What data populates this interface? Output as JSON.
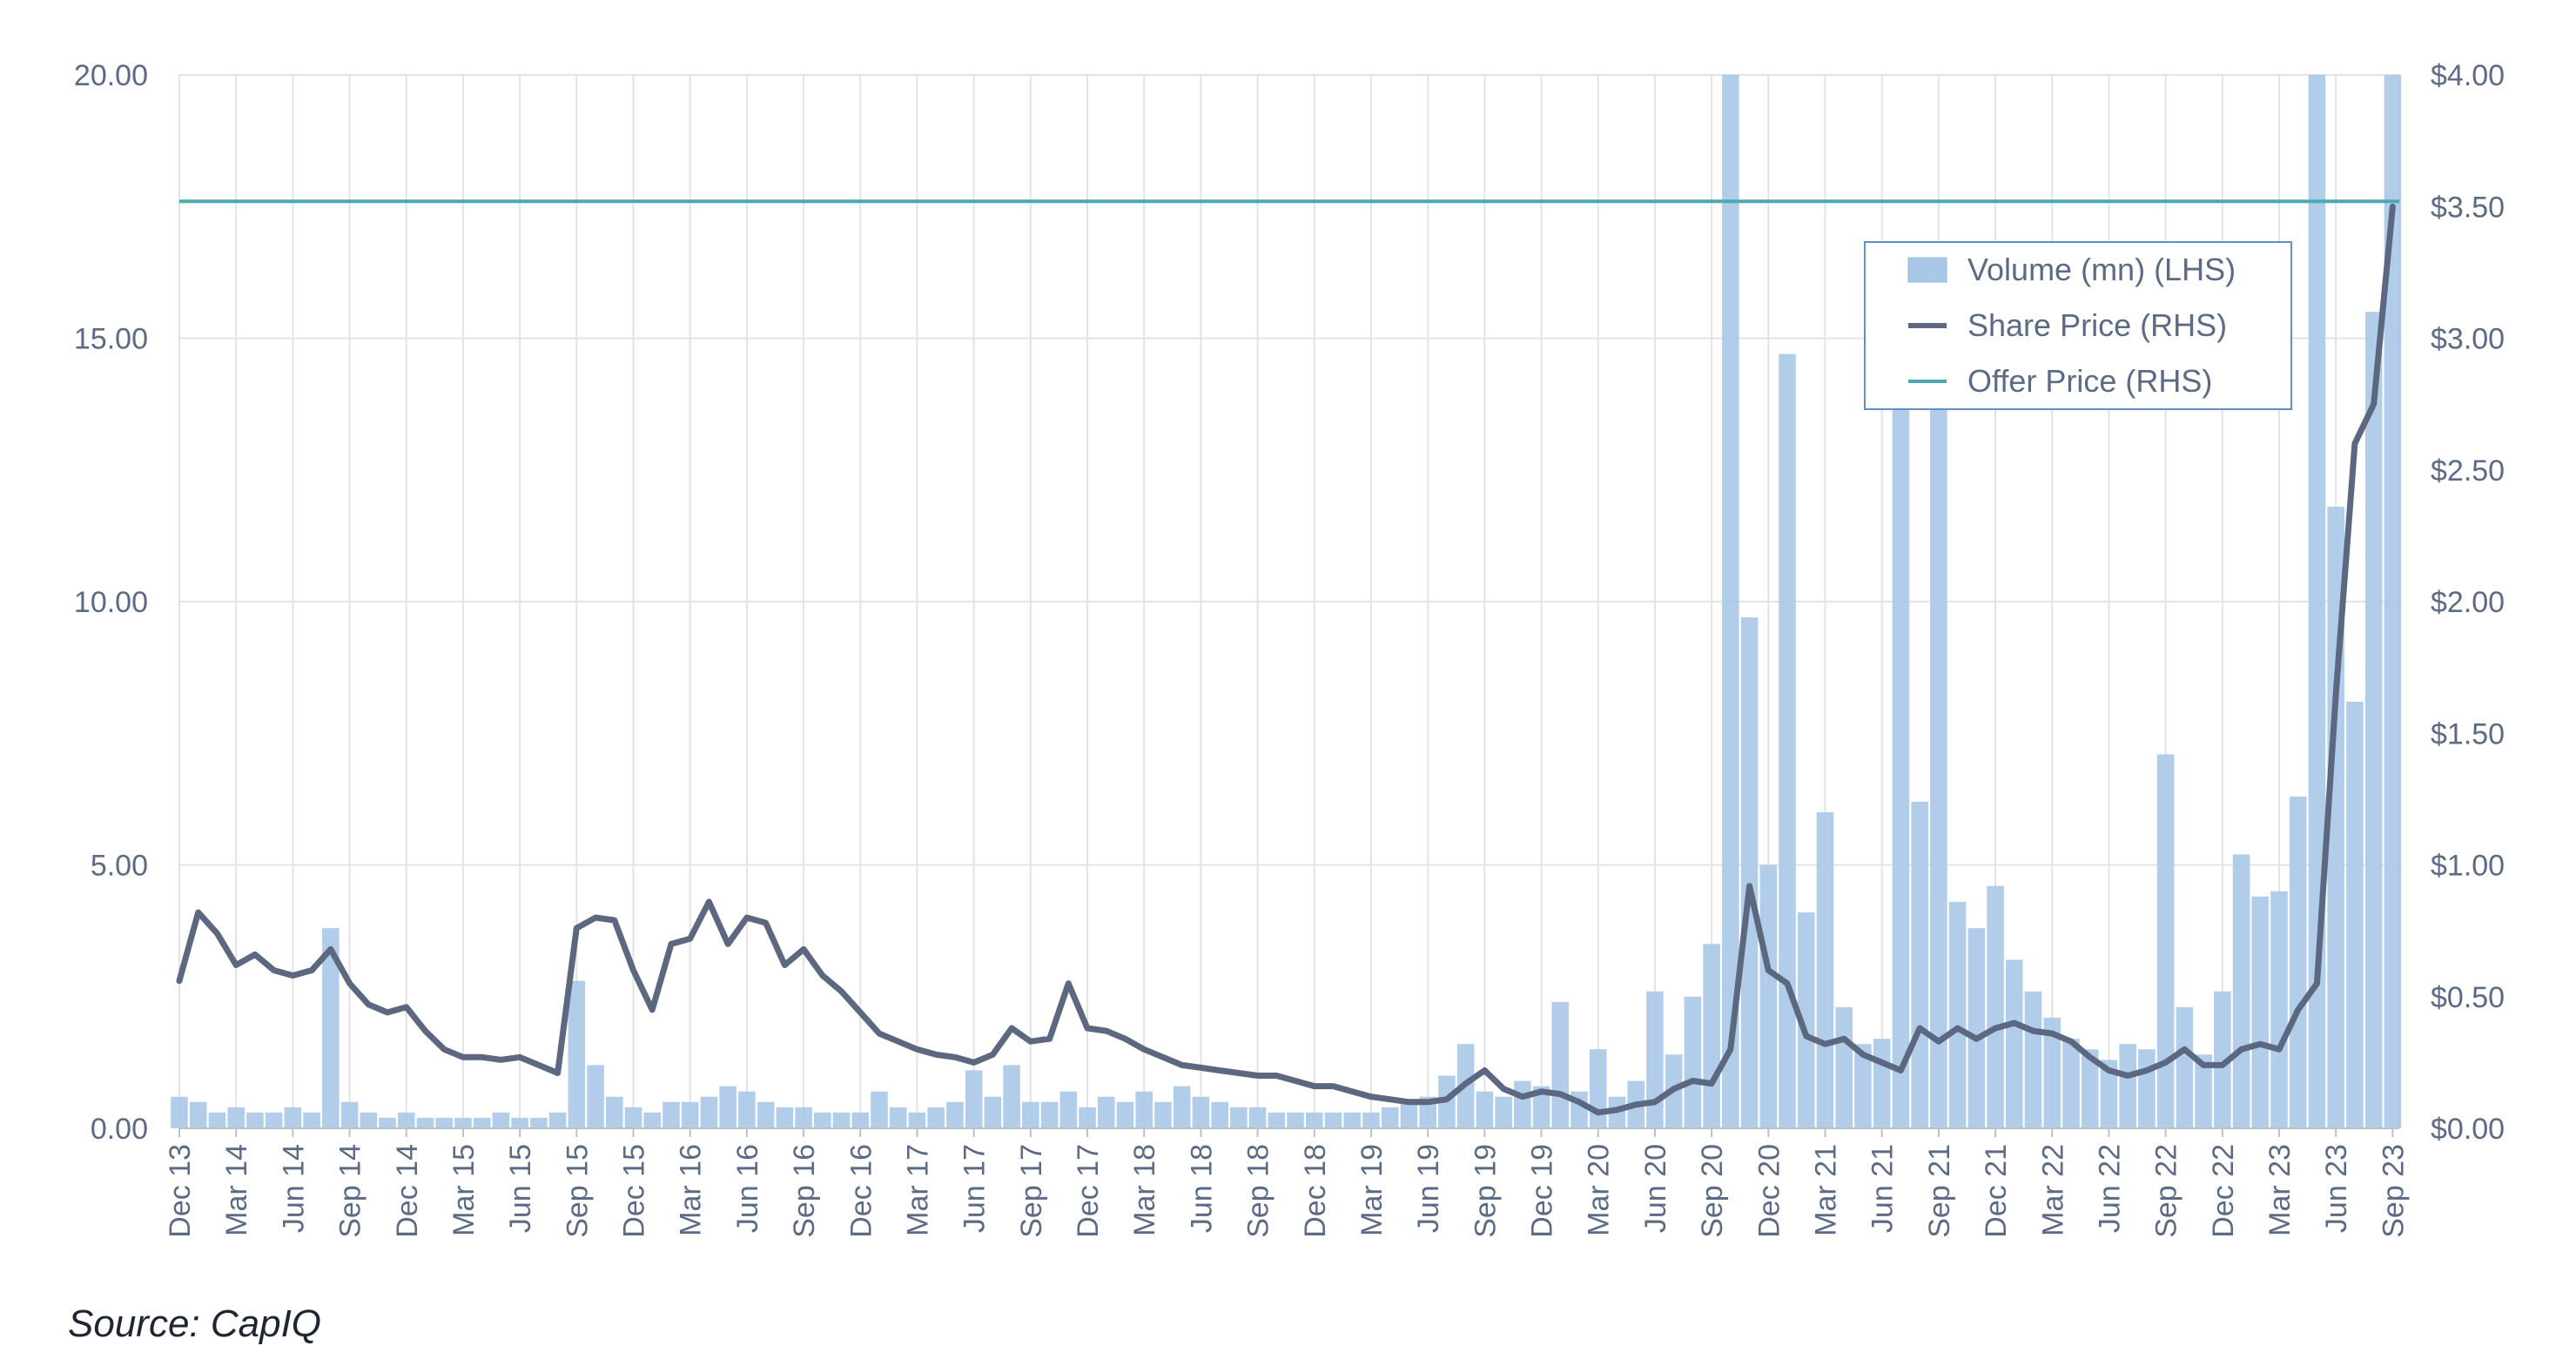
{
  "source_note": "Source: CapIQ",
  "chart_data": {
    "type": "line",
    "title": "",
    "xlabel": "",
    "ylabel_left": "",
    "ylabel_right": "",
    "grid": true,
    "legend_position": "top-right",
    "x_range": [
      "2013-12",
      "2023-09"
    ],
    "x_tick_labels": [
      "Dec 13",
      "Mar 14",
      "Jun 14",
      "Sep 14",
      "Dec 14",
      "Mar 15",
      "Jun 15",
      "Sep 15",
      "Dec 15",
      "Mar 16",
      "Jun 16",
      "Sep 16",
      "Dec 16",
      "Mar 17",
      "Jun 17",
      "Sep 17",
      "Dec 17",
      "Mar 18",
      "Jun 18",
      "Sep 18",
      "Dec 18",
      "Mar 19",
      "Jun 19",
      "Sep 19",
      "Dec 19",
      "Mar 20",
      "Jun 20",
      "Sep 20",
      "Dec 20",
      "Mar 21",
      "Jun 21",
      "Sep 21",
      "Dec 21",
      "Mar 22",
      "Jun 22",
      "Sep 22",
      "Dec 22",
      "Mar 23",
      "Jun 23",
      "Sep 23"
    ],
    "y_left": {
      "range": [
        0,
        20
      ],
      "tick_labels": [
        "0.00",
        "5.00",
        "10.00",
        "15.00",
        "20.00"
      ],
      "tick_values": [
        0,
        5,
        10,
        15,
        20
      ]
    },
    "y_right": {
      "range": [
        0,
        4
      ],
      "tick_labels": [
        "$0.00",
        "$0.50",
        "$1.00",
        "$1.50",
        "$2.00",
        "$2.50",
        "$3.00",
        "$3.50",
        "$4.00"
      ],
      "tick_values": [
        0,
        0.5,
        1,
        1.5,
        2,
        2.5,
        3,
        3.5,
        4
      ]
    },
    "legend": [
      {
        "label": "Volume (mn) (LHS)",
        "swatch": "bar",
        "color": "#a9c8e8"
      },
      {
        "label": "Share Price (RHS)",
        "swatch": "line",
        "color": "#5c6780"
      },
      {
        "label": "Offer Price (RHS)",
        "swatch": "line",
        "color": "#4aa9b3"
      }
    ],
    "series": [
      {
        "name": "Share Price (RHS)",
        "axis": "right",
        "color": "#5c6780",
        "points": [
          [
            "2013-12",
            0.56
          ],
          [
            "2014-01",
            0.82
          ],
          [
            "2014-02",
            0.74
          ],
          [
            "2014-03",
            0.62
          ],
          [
            "2014-04",
            0.66
          ],
          [
            "2014-05",
            0.6
          ],
          [
            "2014-06",
            0.58
          ],
          [
            "2014-07",
            0.6
          ],
          [
            "2014-08",
            0.68
          ],
          [
            "2014-09",
            0.55
          ],
          [
            "2014-10",
            0.47
          ],
          [
            "2014-11",
            0.44
          ],
          [
            "2014-12",
            0.46
          ],
          [
            "2015-01",
            0.37
          ],
          [
            "2015-02",
            0.3
          ],
          [
            "2015-03",
            0.27
          ],
          [
            "2015-04",
            0.27
          ],
          [
            "2015-05",
            0.26
          ],
          [
            "2015-06",
            0.27
          ],
          [
            "2015-07",
            0.24
          ],
          [
            "2015-08",
            0.21
          ],
          [
            "2015-09",
            0.76
          ],
          [
            "2015-10",
            0.8
          ],
          [
            "2015-11",
            0.79
          ],
          [
            "2015-12",
            0.6
          ],
          [
            "2016-01",
            0.45
          ],
          [
            "2016-02",
            0.7
          ],
          [
            "2016-03",
            0.72
          ],
          [
            "2016-04",
            0.86
          ],
          [
            "2016-05",
            0.7
          ],
          [
            "2016-06",
            0.8
          ],
          [
            "2016-07",
            0.78
          ],
          [
            "2016-08",
            0.62
          ],
          [
            "2016-09",
            0.68
          ],
          [
            "2016-10",
            0.58
          ],
          [
            "2016-11",
            0.52
          ],
          [
            "2016-12",
            0.44
          ],
          [
            "2017-01",
            0.36
          ],
          [
            "2017-02",
            0.33
          ],
          [
            "2017-03",
            0.3
          ],
          [
            "2017-04",
            0.28
          ],
          [
            "2017-05",
            0.27
          ],
          [
            "2017-06",
            0.25
          ],
          [
            "2017-07",
            0.28
          ],
          [
            "2017-08",
            0.38
          ],
          [
            "2017-09",
            0.33
          ],
          [
            "2017-10",
            0.34
          ],
          [
            "2017-11",
            0.55
          ],
          [
            "2017-12",
            0.38
          ],
          [
            "2018-01",
            0.37
          ],
          [
            "2018-02",
            0.34
          ],
          [
            "2018-03",
            0.3
          ],
          [
            "2018-04",
            0.27
          ],
          [
            "2018-05",
            0.24
          ],
          [
            "2018-06",
            0.23
          ],
          [
            "2018-07",
            0.22
          ],
          [
            "2018-08",
            0.21
          ],
          [
            "2018-09",
            0.2
          ],
          [
            "2018-10",
            0.2
          ],
          [
            "2018-11",
            0.18
          ],
          [
            "2018-12",
            0.16
          ],
          [
            "2019-01",
            0.16
          ],
          [
            "2019-02",
            0.14
          ],
          [
            "2019-03",
            0.12
          ],
          [
            "2019-04",
            0.11
          ],
          [
            "2019-05",
            0.1
          ],
          [
            "2019-06",
            0.1
          ],
          [
            "2019-07",
            0.11
          ],
          [
            "2019-08",
            0.17
          ],
          [
            "2019-09",
            0.22
          ],
          [
            "2019-10",
            0.15
          ],
          [
            "2019-11",
            0.12
          ],
          [
            "2019-12",
            0.14
          ],
          [
            "2020-01",
            0.13
          ],
          [
            "2020-02",
            0.1
          ],
          [
            "2020-03",
            0.06
          ],
          [
            "2020-04",
            0.07
          ],
          [
            "2020-05",
            0.09
          ],
          [
            "2020-06",
            0.1
          ],
          [
            "2020-07",
            0.15
          ],
          [
            "2020-08",
            0.18
          ],
          [
            "2020-09",
            0.17
          ],
          [
            "2020-10",
            0.3
          ],
          [
            "2020-11",
            0.92
          ],
          [
            "2020-12",
            0.6
          ],
          [
            "2021-01",
            0.55
          ],
          [
            "2021-02",
            0.35
          ],
          [
            "2021-03",
            0.32
          ],
          [
            "2021-04",
            0.34
          ],
          [
            "2021-05",
            0.28
          ],
          [
            "2021-06",
            0.25
          ],
          [
            "2021-07",
            0.22
          ],
          [
            "2021-08",
            0.38
          ],
          [
            "2021-09",
            0.33
          ],
          [
            "2021-10",
            0.38
          ],
          [
            "2021-11",
            0.34
          ],
          [
            "2021-12",
            0.38
          ],
          [
            "2022-01",
            0.4
          ],
          [
            "2022-02",
            0.37
          ],
          [
            "2022-03",
            0.36
          ],
          [
            "2022-04",
            0.33
          ],
          [
            "2022-05",
            0.27
          ],
          [
            "2022-06",
            0.22
          ],
          [
            "2022-07",
            0.2
          ],
          [
            "2022-08",
            0.22
          ],
          [
            "2022-09",
            0.25
          ],
          [
            "2022-10",
            0.3
          ],
          [
            "2022-11",
            0.24
          ],
          [
            "2022-12",
            0.24
          ],
          [
            "2023-01",
            0.3
          ],
          [
            "2023-02",
            0.32
          ],
          [
            "2023-03",
            0.3
          ],
          [
            "2023-04",
            0.45
          ],
          [
            "2023-05",
            0.55
          ],
          [
            "2023-06",
            1.65
          ],
          [
            "2023-07",
            2.6
          ],
          [
            "2023-08",
            2.75
          ],
          [
            "2023-09",
            3.5
          ]
        ]
      },
      {
        "name": "Volume (mn) (LHS)",
        "axis": "left",
        "color": "#a9c8e8",
        "points": [
          [
            "2013-12",
            0.6
          ],
          [
            "2014-01",
            0.5
          ],
          [
            "2014-02",
            0.3
          ],
          [
            "2014-03",
            0.4
          ],
          [
            "2014-04",
            0.3
          ],
          [
            "2014-05",
            0.3
          ],
          [
            "2014-06",
            0.4
          ],
          [
            "2014-07",
            0.3
          ],
          [
            "2014-08",
            3.8
          ],
          [
            "2014-09",
            0.5
          ],
          [
            "2014-10",
            0.3
          ],
          [
            "2014-11",
            0.2
          ],
          [
            "2014-12",
            0.3
          ],
          [
            "2015-01",
            0.2
          ],
          [
            "2015-02",
            0.2
          ],
          [
            "2015-03",
            0.2
          ],
          [
            "2015-04",
            0.2
          ],
          [
            "2015-05",
            0.3
          ],
          [
            "2015-06",
            0.2
          ],
          [
            "2015-07",
            0.2
          ],
          [
            "2015-08",
            0.3
          ],
          [
            "2015-09",
            2.8
          ],
          [
            "2015-10",
            1.2
          ],
          [
            "2015-11",
            0.6
          ],
          [
            "2015-12",
            0.4
          ],
          [
            "2016-01",
            0.3
          ],
          [
            "2016-02",
            0.5
          ],
          [
            "2016-03",
            0.5
          ],
          [
            "2016-04",
            0.6
          ],
          [
            "2016-05",
            0.8
          ],
          [
            "2016-06",
            0.7
          ],
          [
            "2016-07",
            0.5
          ],
          [
            "2016-08",
            0.4
          ],
          [
            "2016-09",
            0.4
          ],
          [
            "2016-10",
            0.3
          ],
          [
            "2016-11",
            0.3
          ],
          [
            "2016-12",
            0.3
          ],
          [
            "2017-01",
            0.7
          ],
          [
            "2017-02",
            0.4
          ],
          [
            "2017-03",
            0.3
          ],
          [
            "2017-04",
            0.4
          ],
          [
            "2017-05",
            0.5
          ],
          [
            "2017-06",
            1.1
          ],
          [
            "2017-07",
            0.6
          ],
          [
            "2017-08",
            1.2
          ],
          [
            "2017-09",
            0.5
          ],
          [
            "2017-10",
            0.5
          ],
          [
            "2017-11",
            0.7
          ],
          [
            "2017-12",
            0.4
          ],
          [
            "2018-01",
            0.6
          ],
          [
            "2018-02",
            0.5
          ],
          [
            "2018-03",
            0.7
          ],
          [
            "2018-04",
            0.5
          ],
          [
            "2018-05",
            0.8
          ],
          [
            "2018-06",
            0.6
          ],
          [
            "2018-07",
            0.5
          ],
          [
            "2018-08",
            0.4
          ],
          [
            "2018-09",
            0.4
          ],
          [
            "2018-10",
            0.3
          ],
          [
            "2018-11",
            0.3
          ],
          [
            "2018-12",
            0.3
          ],
          [
            "2019-01",
            0.3
          ],
          [
            "2019-02",
            0.3
          ],
          [
            "2019-03",
            0.3
          ],
          [
            "2019-04",
            0.4
          ],
          [
            "2019-05",
            0.5
          ],
          [
            "2019-06",
            0.6
          ],
          [
            "2019-07",
            1.0
          ],
          [
            "2019-08",
            1.6
          ],
          [
            "2019-09",
            0.7
          ],
          [
            "2019-10",
            0.6
          ],
          [
            "2019-11",
            0.9
          ],
          [
            "2019-12",
            0.8
          ],
          [
            "2020-01",
            2.4
          ],
          [
            "2020-02",
            0.7
          ],
          [
            "2020-03",
            1.5
          ],
          [
            "2020-04",
            0.6
          ],
          [
            "2020-05",
            0.9
          ],
          [
            "2020-06",
            2.6
          ],
          [
            "2020-07",
            1.4
          ],
          [
            "2020-08",
            2.5
          ],
          [
            "2020-09",
            3.5
          ],
          [
            "2020-10",
            20.0
          ],
          [
            "2020-11",
            9.7
          ],
          [
            "2020-12",
            5.0
          ],
          [
            "2021-01",
            14.7
          ],
          [
            "2021-02",
            4.1
          ],
          [
            "2021-03",
            6.0
          ],
          [
            "2021-04",
            2.3
          ],
          [
            "2021-05",
            1.6
          ],
          [
            "2021-06",
            1.7
          ],
          [
            "2021-07",
            13.8
          ],
          [
            "2021-08",
            6.2
          ],
          [
            "2021-09",
            13.9
          ],
          [
            "2021-10",
            4.3
          ],
          [
            "2021-11",
            3.8
          ],
          [
            "2021-12",
            4.6
          ],
          [
            "2022-01",
            3.2
          ],
          [
            "2022-02",
            2.6
          ],
          [
            "2022-03",
            2.1
          ],
          [
            "2022-04",
            1.7
          ],
          [
            "2022-05",
            1.5
          ],
          [
            "2022-06",
            1.3
          ],
          [
            "2022-07",
            1.6
          ],
          [
            "2022-08",
            1.5
          ],
          [
            "2022-09",
            7.1
          ],
          [
            "2022-10",
            2.3
          ],
          [
            "2022-11",
            1.4
          ],
          [
            "2022-12",
            2.6
          ],
          [
            "2023-01",
            5.2
          ],
          [
            "2023-02",
            4.4
          ],
          [
            "2023-03",
            4.5
          ],
          [
            "2023-04",
            6.3
          ],
          [
            "2023-05",
            20.0
          ],
          [
            "2023-06",
            11.8
          ],
          [
            "2023-07",
            8.1
          ],
          [
            "2023-08",
            15.5
          ],
          [
            "2023-09",
            20.0
          ]
        ]
      },
      {
        "name": "Offer Price (RHS)",
        "axis": "right",
        "color": "#4aa9b3",
        "points": [
          [
            "2013-12",
            3.52
          ],
          [
            "2023-09",
            3.52
          ]
        ]
      }
    ]
  }
}
